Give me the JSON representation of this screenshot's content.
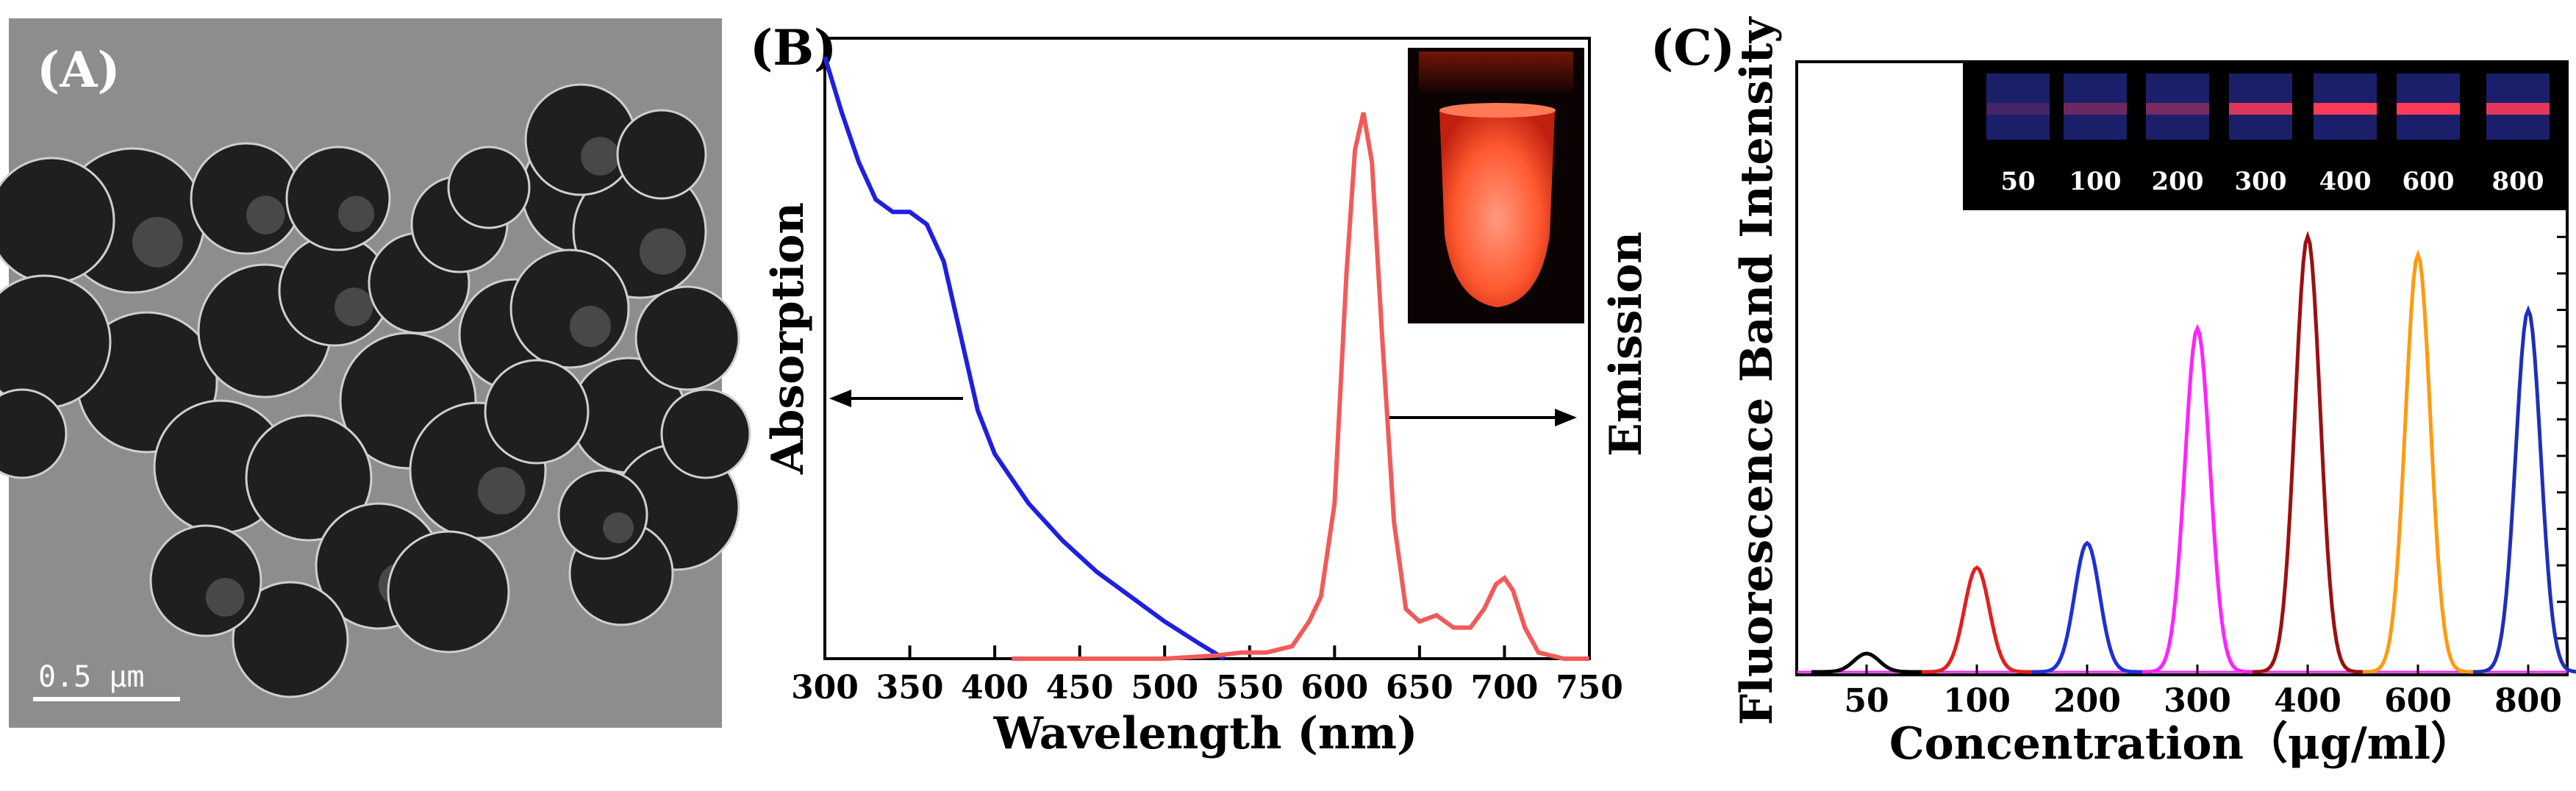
{
  "panels": {
    "a": {
      "label": "(A)",
      "scale_bar": "0.5 μm",
      "image": "TEM micrograph of spherical core-shell nanoparticles"
    },
    "b": {
      "label": "(B)",
      "inset": "photo of red-orange emitting sample tube"
    },
    "c": {
      "label": "(C)",
      "inset_labels": [
        "50",
        "100",
        "200",
        "300",
        "400",
        "600",
        "800"
      ]
    }
  },
  "colors": {
    "absorption": "#1f1fe0",
    "emission": "#f25a5a",
    "c_series": [
      "#000000",
      "#e02020",
      "#1f2fd8",
      "#ff22ff",
      "#9b1010",
      "#ff9a10",
      "#1f2fb8"
    ]
  },
  "chart_data": [
    {
      "id": "B",
      "type": "line",
      "title": "",
      "xlabel": "Wavelength (nm)",
      "ylabel_left": "Absorption",
      "ylabel_right": "Emission",
      "xlim": [
        300,
        750
      ],
      "ylim": [
        0,
        1
      ],
      "xticks": [
        "300",
        "350",
        "400",
        "450",
        "500",
        "550",
        "600",
        "650",
        "700",
        "750"
      ],
      "series": [
        {
          "name": "Absorption",
          "axis": "left",
          "x": [
            300,
            310,
            320,
            330,
            340,
            350,
            360,
            370,
            380,
            390,
            400,
            420,
            440,
            460,
            480,
            500,
            520,
            535
          ],
          "values": [
            0.97,
            0.88,
            0.8,
            0.74,
            0.72,
            0.72,
            0.7,
            0.64,
            0.52,
            0.4,
            0.33,
            0.25,
            0.19,
            0.14,
            0.1,
            0.06,
            0.025,
            0.0
          ]
        },
        {
          "name": "Emission",
          "axis": "right",
          "x": [
            410,
            450,
            500,
            530,
            545,
            560,
            575,
            585,
            592,
            600,
            607,
            612,
            617,
            622,
            628,
            635,
            642,
            650,
            660,
            670,
            680,
            688,
            695,
            700,
            705,
            712,
            720,
            735,
            750
          ],
          "values": [
            0.0,
            0.0,
            0.0,
            0.005,
            0.01,
            0.01,
            0.02,
            0.06,
            0.1,
            0.25,
            0.62,
            0.82,
            0.88,
            0.8,
            0.52,
            0.22,
            0.08,
            0.06,
            0.07,
            0.05,
            0.05,
            0.08,
            0.12,
            0.13,
            0.11,
            0.05,
            0.01,
            0.0,
            0.0
          ]
        }
      ],
      "annotations": [
        "arrow pointing left to Absorption axis",
        "arrow pointing right to Emission axis"
      ]
    },
    {
      "id": "C",
      "type": "line",
      "title": "",
      "xlabel": "Concentration（μg/ml）",
      "ylabel": "Fluorescence  Band Intensity",
      "categories": [
        "50",
        "100",
        "200",
        "300",
        "400",
        "600",
        "800"
      ],
      "ylim": [
        0,
        1
      ],
      "series": [
        {
          "name": "50",
          "peak": 0.03
        },
        {
          "name": "100",
          "peak": 0.17
        },
        {
          "name": "200",
          "peak": 0.21
        },
        {
          "name": "300",
          "peak": 0.56
        },
        {
          "name": "400",
          "peak": 0.71
        },
        {
          "name": "600",
          "peak": 0.68
        },
        {
          "name": "800",
          "peak": 0.59
        }
      ]
    }
  ]
}
